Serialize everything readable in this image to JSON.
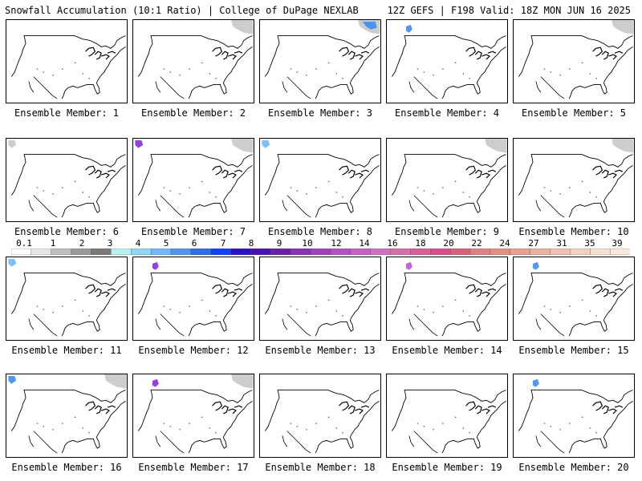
{
  "header": {
    "left": "Snowfall Accumulation (10:1 Ratio) | College of DuPage NEXLAB",
    "right": "12Z GEFS | F198 Valid: 18Z MON JUN 16 2025"
  },
  "panels": [
    {
      "label": "Ensemble Member: 1",
      "snow": []
    },
    {
      "label": "Ensemble Member: 2",
      "snow": [
        {
          "region": "northeast-canada",
          "color": "#c8c8c8"
        }
      ]
    },
    {
      "label": "Ensemble Member: 3",
      "snow": [
        {
          "region": "northeast-canada",
          "color": "#c8c8c8"
        },
        {
          "region": "northeast-canada-core",
          "color": "#3b8ff0"
        }
      ]
    },
    {
      "label": "Ensemble Member: 4",
      "snow": [
        {
          "region": "northern-rockies",
          "color": "#3b8ff0"
        }
      ]
    },
    {
      "label": "Ensemble Member: 5",
      "snow": [
        {
          "region": "northeast-canada",
          "color": "#c8c8c8"
        }
      ]
    },
    {
      "label": "Ensemble Member: 6",
      "snow": [
        {
          "region": "northwest",
          "color": "#c8c8c8"
        }
      ]
    },
    {
      "label": "Ensemble Member: 7",
      "snow": [
        {
          "region": "northwest",
          "color": "#8a2be2"
        },
        {
          "region": "northeast-canada",
          "color": "#c8c8c8"
        }
      ]
    },
    {
      "label": "Ensemble Member: 8",
      "snow": [
        {
          "region": "northwest",
          "color": "#6fb8ff"
        }
      ]
    },
    {
      "label": "Ensemble Member: 9",
      "snow": [
        {
          "region": "northeast-canada",
          "color": "#c8c8c8"
        }
      ]
    },
    {
      "label": "Ensemble Member: 10",
      "snow": [
        {
          "region": "northeast-canada",
          "color": "#c8c8c8"
        }
      ]
    },
    {
      "label": "Ensemble Member: 11",
      "snow": [
        {
          "region": "northwest",
          "color": "#6fb8ff"
        }
      ]
    },
    {
      "label": "Ensemble Member: 12",
      "snow": [
        {
          "region": "northern-rockies",
          "color": "#8a2be2"
        }
      ]
    },
    {
      "label": "Ensemble Member: 13",
      "snow": []
    },
    {
      "label": "Ensemble Member: 14",
      "snow": [
        {
          "region": "northern-rockies",
          "color": "#c04fe0"
        }
      ]
    },
    {
      "label": "Ensemble Member: 15",
      "snow": [
        {
          "region": "northern-rockies",
          "color": "#3b8ff0"
        }
      ]
    },
    {
      "label": "Ensemble Member: 16",
      "snow": [
        {
          "region": "northwest",
          "color": "#3b8ff0"
        },
        {
          "region": "northeast-canada",
          "color": "#c8c8c8"
        }
      ]
    },
    {
      "label": "Ensemble Member: 17",
      "snow": [
        {
          "region": "northern-rockies",
          "color": "#8a2be2"
        },
        {
          "region": "northeast-canada",
          "color": "#c8c8c8"
        }
      ]
    },
    {
      "label": "Ensemble Member: 18",
      "snow": []
    },
    {
      "label": "Ensemble Member: 19",
      "snow": []
    },
    {
      "label": "Ensemble Member: 20",
      "snow": [
        {
          "region": "northern-rockies",
          "color": "#3b8ff0"
        }
      ]
    }
  ],
  "colorbar": {
    "labels": [
      "0.1",
      "1",
      "2",
      "3",
      "4",
      "5",
      "6",
      "7",
      "8",
      "9",
      "10",
      "12",
      "14",
      "16",
      "18",
      "20",
      "22",
      "24",
      "27",
      "31",
      "35",
      "39"
    ],
    "colors": [
      "#ffffff",
      "#e6e6e6",
      "#bfbfbf",
      "#9a9a9a",
      "#7a7a7a",
      "#b7f0f0",
      "#8fd8f5",
      "#6fb8ff",
      "#4f95f0",
      "#2f6fe8",
      "#1040ff",
      "#2a10c8",
      "#4a10b0",
      "#6a20a8",
      "#8a30b8",
      "#a040c0",
      "#b850c8",
      "#c860c8",
      "#d070c0",
      "#d86fa8",
      "#d85f98",
      "#d85088",
      "#d86078",
      "#e08080",
      "#e49080",
      "#e8a090",
      "#ecb0a0",
      "#f0c0b0",
      "#f4d0c0",
      "#f8e0d0",
      "#fce8dc"
    ]
  }
}
